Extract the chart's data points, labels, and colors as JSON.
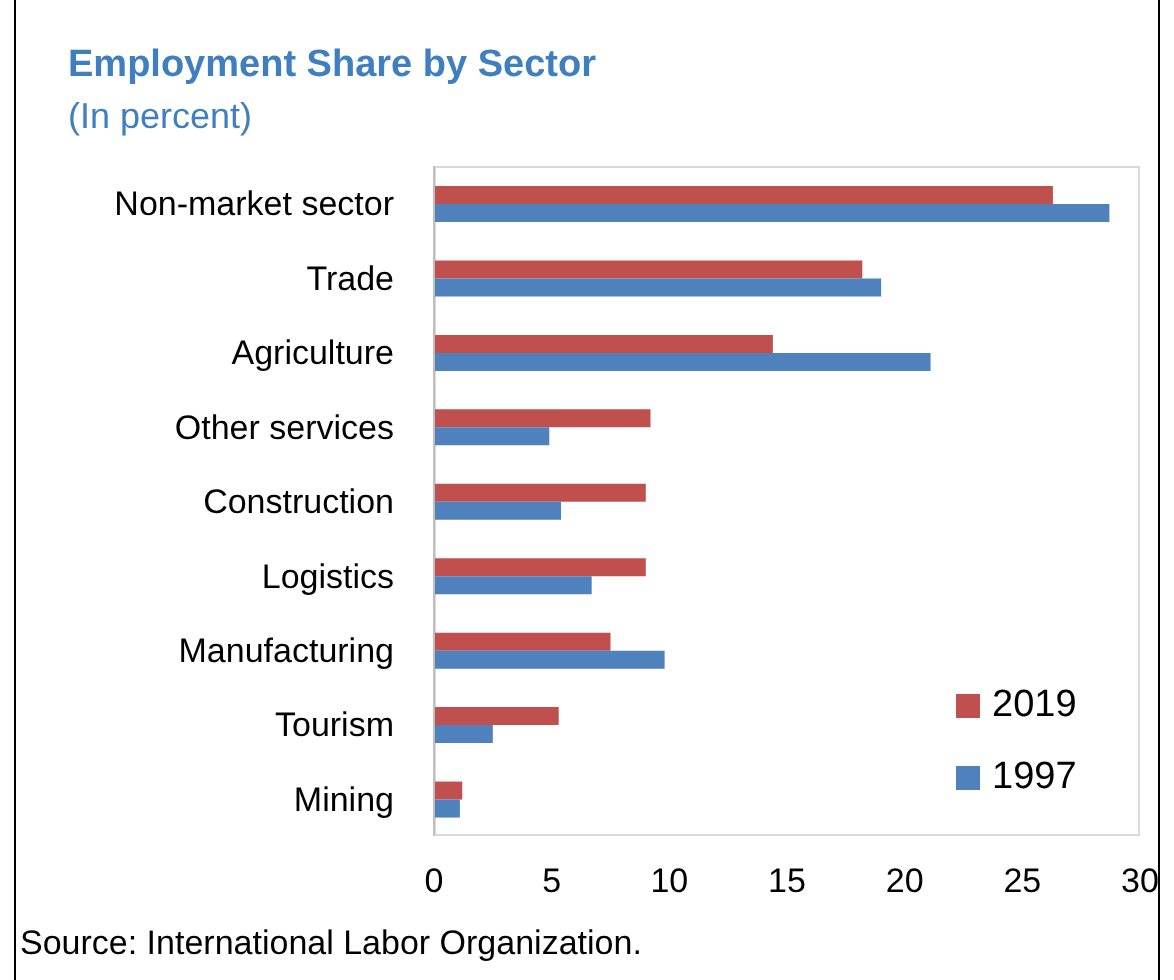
{
  "chart_data": {
    "type": "bar",
    "orientation": "horizontal",
    "title": "Employment Share by Sector",
    "subtitle": "(In percent)",
    "categories": [
      "Non-market sector",
      "Trade",
      "Agriculture",
      "Other services",
      "Construction",
      "Logistics",
      "Manufacturing",
      "Tourism",
      "Mining"
    ],
    "series": [
      {
        "name": "2019",
        "color": "#c0504d",
        "values": [
          26.3,
          18.2,
          14.4,
          9.2,
          9.0,
          9.0,
          7.5,
          5.3,
          1.2
        ]
      },
      {
        "name": "1997",
        "color": "#4f81bd",
        "values": [
          28.7,
          19.0,
          21.1,
          4.9,
          5.4,
          6.7,
          9.8,
          2.5,
          1.1
        ]
      }
    ],
    "xlim": [
      0,
      30
    ],
    "xticks": [
      0,
      5,
      10,
      15,
      20,
      25,
      30
    ],
    "grid": false,
    "legend": "bottom right",
    "annotations": [
      "Source: International Labor Organization."
    ]
  }
}
